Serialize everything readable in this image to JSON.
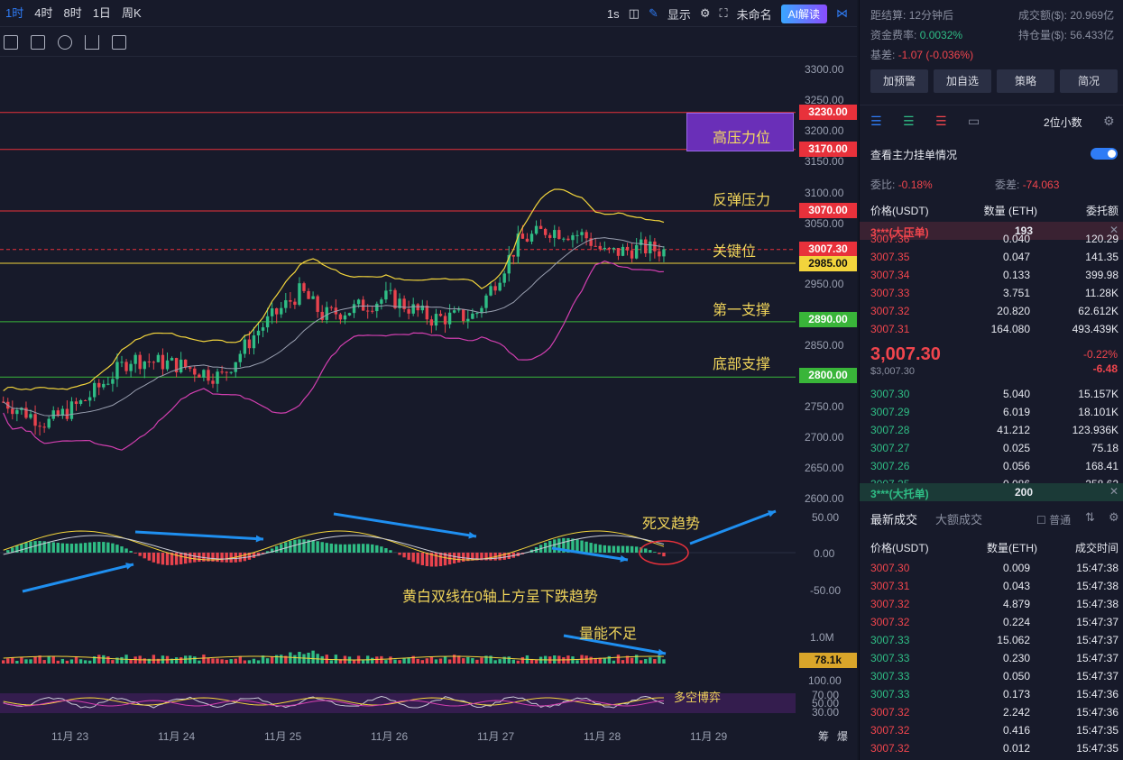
{
  "timeframes": [
    "1时",
    "4时",
    "8时",
    "1日",
    "周K"
  ],
  "topbar_right": {
    "interval": "1s",
    "display": "显示",
    "template": "未命名",
    "ai": "AI解读"
  },
  "price_axis": [
    "3300.00",
    "3250.00",
    "3200.00",
    "3150.00",
    "3100.00",
    "3050.00",
    "2950.00",
    "2850.00",
    "2750.00",
    "2700.00",
    "2650.00",
    "2600.00"
  ],
  "price_labels": [
    {
      "text": "3230.00",
      "color": "#e8313b"
    },
    {
      "text": "3170.00",
      "color": "#e8313b"
    },
    {
      "text": "3070.00",
      "color": "#e8313b"
    },
    {
      "text": "3007.30",
      "color": "#e8313b"
    },
    {
      "text": "2985.00",
      "color": "#f2d43c"
    },
    {
      "text": "2890.00",
      "color": "#39b539"
    },
    {
      "text": "2800.00",
      "color": "#39b539"
    }
  ],
  "annotations": {
    "high_pressure": "高压力位",
    "rebound_pressure": "反弹压力",
    "key_level": "关键位",
    "support1": "第一支撑",
    "support_bottom": "底部支撑",
    "death_cross": "死叉趋势",
    "macd_note": "黄白双线在0轴上方呈下跌趋势",
    "volume_note": "量能不足",
    "rsi_note": "多空博弈"
  },
  "macd_axis": [
    "50.00",
    "0.00",
    "-50.00"
  ],
  "volume_axis": "1.0M",
  "volume_label": "78.1k",
  "rsi_axis": [
    "100.00",
    "70.00",
    "50.00",
    "30.00"
  ],
  "dates": [
    "11月 23",
    "11月 24",
    "11月 25",
    "11月 26",
    "11月 27",
    "11月 28",
    "11月 29"
  ],
  "corner_labels": [
    "筹",
    "爆"
  ],
  "right": {
    "settle_label": "距结算:",
    "settle_value": "12分钟后",
    "turnover_label": "成交额($):",
    "turnover_value": "20.969亿",
    "funding_label": "资金费率:",
    "funding_value": "0.0032%",
    "oi_label": "持仓量($):",
    "oi_value": "56.433亿",
    "basis_label": "基差:",
    "basis_value": "-1.07 (-0.036%)",
    "buttons": [
      "加预警",
      "加自选",
      "策略",
      "简况"
    ],
    "decimals": "2位小数",
    "depth_link": "查看主力挂单情况",
    "ratio_label": "委比:",
    "ratio_value": "-0.18%",
    "diff_label": "委差:",
    "diff_value": "-74.063",
    "headers": [
      "价格(USDT)",
      "数量 (ETH)",
      "委托额"
    ],
    "ask_banner_name": "3***(大压单)",
    "ask_banner_qty": "193",
    "asks": [
      [
        "3007.36",
        "0.040",
        "120.29"
      ],
      [
        "3007.35",
        "0.047",
        "141.35"
      ],
      [
        "3007.34",
        "0.133",
        "399.98"
      ],
      [
        "3007.33",
        "3.751",
        "11.28K"
      ],
      [
        "3007.32",
        "20.820",
        "62.612K"
      ],
      [
        "3007.31",
        "164.080",
        "493.439K"
      ]
    ],
    "last_price": "3,007.30",
    "last_sub": "$3,007.30",
    "change_pct": "-0.22%",
    "change_abs": "-6.48",
    "bids": [
      [
        "3007.30",
        "5.040",
        "15.157K"
      ],
      [
        "3007.29",
        "6.019",
        "18.101K"
      ],
      [
        "3007.28",
        "41.212",
        "123.936K"
      ],
      [
        "3007.27",
        "0.025",
        "75.18"
      ],
      [
        "3007.26",
        "0.056",
        "168.41"
      ],
      [
        "3007.25",
        "0.086",
        "258.62"
      ]
    ],
    "bid_banner_name": "3***(大托单)",
    "bid_banner_qty": "200",
    "trade_tabs": [
      "最新成交",
      "大额成交"
    ],
    "normal": "普通",
    "trade_headers": [
      "价格(USDT)",
      "数量(ETH)",
      "成交时间"
    ],
    "trades": [
      [
        "3007.30",
        "0.009",
        "15:47:38",
        "red"
      ],
      [
        "3007.31",
        "0.043",
        "15:47:38",
        "red"
      ],
      [
        "3007.32",
        "4.879",
        "15:47:38",
        "red"
      ],
      [
        "3007.32",
        "0.224",
        "15:47:37",
        "red"
      ],
      [
        "3007.33",
        "15.062",
        "15:47:37",
        "green"
      ],
      [
        "3007.33",
        "0.230",
        "15:47:37",
        "green"
      ],
      [
        "3007.33",
        "0.050",
        "15:47:37",
        "green"
      ],
      [
        "3007.33",
        "0.173",
        "15:47:36",
        "green"
      ],
      [
        "3007.32",
        "2.242",
        "15:47:36",
        "red"
      ],
      [
        "3007.32",
        "0.416",
        "15:47:35",
        "red"
      ],
      [
        "3007.32",
        "0.012",
        "15:47:35",
        "red"
      ]
    ]
  }
}
